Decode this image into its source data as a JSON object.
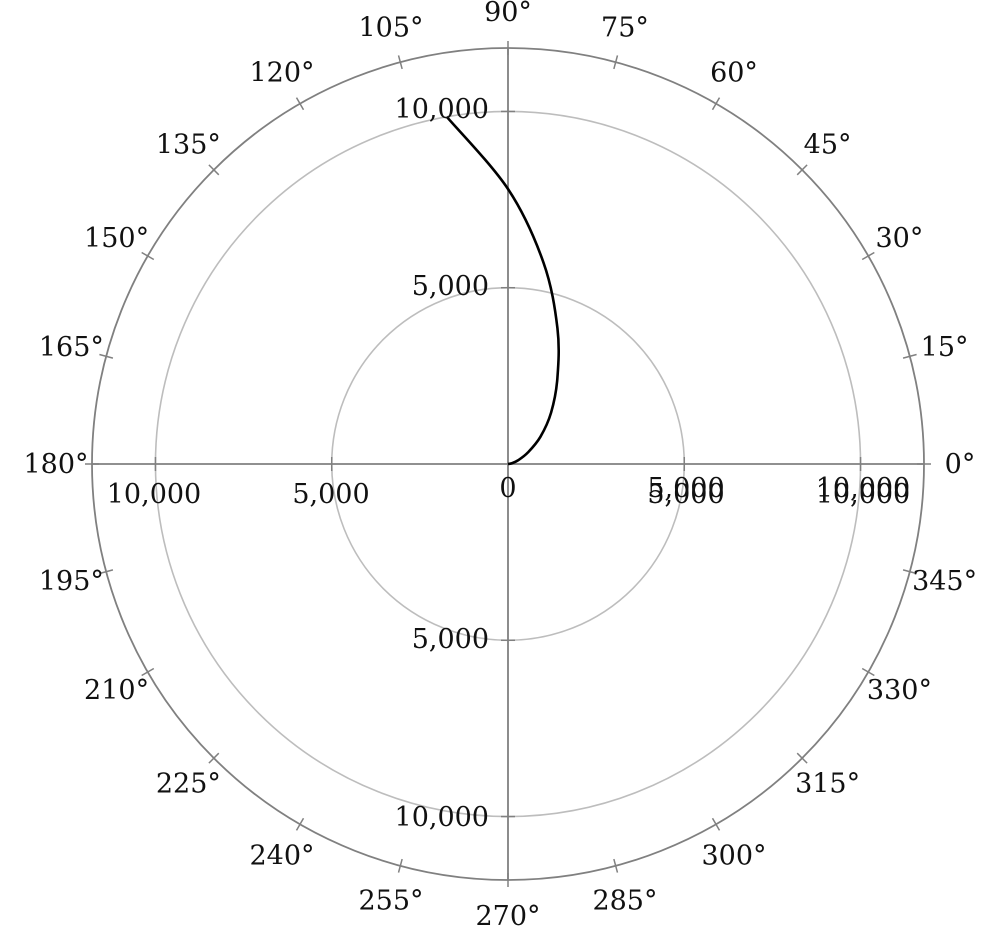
{
  "chart_data": {
    "type": "line",
    "coordinate_system": "polar",
    "title": "",
    "xlabel": "",
    "ylabel": "",
    "rlim": [
      0,
      11800
    ],
    "angle_unit": "degrees",
    "grid": true,
    "radial_grid_values": [
      5000,
      10000
    ],
    "radial_tick_labels": {
      "vertical_axis": [
        "10,000",
        "5,000",
        "5,000",
        "10,000"
      ],
      "horizontal_axis": [
        "10,000",
        "5,000",
        "0",
        "5,000",
        "5,000",
        "10,000",
        "10,000"
      ]
    },
    "angle_ticks": [
      "0°",
      "15°",
      "30°",
      "45°",
      "60°",
      "75°",
      "90°",
      "105°",
      "120°",
      "135°",
      "150°",
      "165°",
      "180°",
      "195°",
      "210°",
      "225°",
      "240°",
      "255°",
      "270°",
      "285°",
      "300°",
      "315°",
      "330°",
      "345°"
    ],
    "series": [
      {
        "line_color": "#000000",
        "points": [
          {
            "theta": 0,
            "r": 0
          },
          {
            "theta": 10,
            "r": 100
          },
          {
            "theta": 20,
            "r": 300
          },
          {
            "theta": 30,
            "r": 650
          },
          {
            "theta": 40,
            "r": 1200
          },
          {
            "theta": 50,
            "r": 1900
          },
          {
            "theta": 60,
            "r": 2800
          },
          {
            "theta": 70,
            "r": 4100
          },
          {
            "theta": 80,
            "r": 5800
          },
          {
            "theta": 90,
            "r": 7800
          },
          {
            "theta": 100,
            "r": 10000
          }
        ]
      }
    ],
    "colors": {
      "outer_circle": "#808080",
      "inner_grid": "#bdbdbd",
      "axis": "#808080",
      "curve": "#000000"
    }
  }
}
